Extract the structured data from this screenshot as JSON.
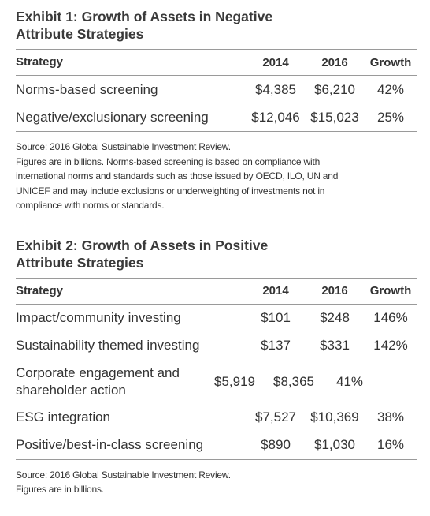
{
  "exhibits": [
    {
      "title_lines": [
        "Exhibit 1: Growth of Assets in Negative",
        "Attribute Strategies"
      ],
      "table": {
        "header": [
          "Strategy",
          "2014",
          "2016",
          "Growth"
        ],
        "rows": [
          [
            "Norms-based screening",
            "$4,385",
            "$6,210",
            "42%"
          ],
          [
            "Negative/exclusionary screening",
            "$12,046",
            "$15,023",
            "25%"
          ]
        ]
      },
      "footnotes": [
        "Source: 2016 Global Sustainable Investment Review.",
        "Figures are in billions. Norms-based screening is based on compliance with",
        "international norms and standards such as those issued by OECD, ILO, UN and",
        "UNICEF and may include exclusions or underweighting of investments not in",
        "compliance with norms or standards."
      ]
    },
    {
      "title_lines": [
        "Exhibit 2: Growth of Assets in Positive",
        "Attribute Strategies"
      ],
      "table": {
        "header": [
          "Strategy",
          "2014",
          "2016",
          "Growth"
        ],
        "rows": [
          [
            "Impact/community investing",
            "$101",
            "$248",
            "146%"
          ],
          [
            "Sustainability themed investing",
            "$137",
            "$331",
            "142%"
          ],
          [
            "Corporate engagement and shareholder action",
            "$5,919",
            "$8,365",
            "41%"
          ],
          [
            "ESG integration",
            "$7,527",
            "$10,369",
            "38%"
          ],
          [
            "Positive/best-in-class screening",
            "$890",
            "$1,030",
            "16%"
          ]
        ]
      },
      "footnotes": [
        "Source: 2016 Global Sustainable Investment Review.",
        "Figures are in billions."
      ]
    }
  ]
}
